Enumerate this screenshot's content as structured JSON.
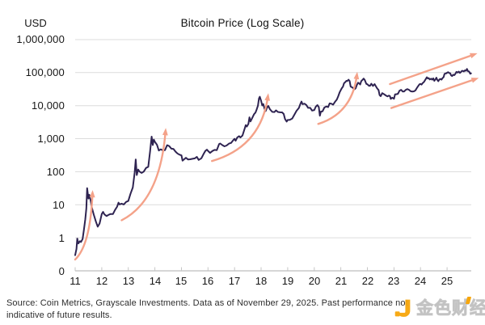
{
  "chart_data": {
    "type": "line",
    "title": "Bitcoin Price (Log Scale)",
    "y_axis_unit": "USD",
    "y_scale": "log10",
    "grid": true,
    "y_tick_labels": [
      "1,000,000",
      "100,000",
      "10,000",
      "1,000",
      "100",
      "10",
      "1",
      "0"
    ],
    "y_tick_values": [
      1000000,
      100000,
      10000,
      1000,
      100,
      10,
      1,
      0
    ],
    "x_tick_labels": [
      "11",
      "12",
      "13",
      "14",
      "15",
      "16",
      "17",
      "18",
      "19",
      "20",
      "21",
      "22",
      "23",
      "24",
      "25"
    ],
    "x_tick_years": [
      2011,
      2012,
      2013,
      2014,
      2015,
      2016,
      2017,
      2018,
      2019,
      2020,
      2021,
      2022,
      2023,
      2024,
      2025
    ],
    "x_range": [
      2011,
      2025.91
    ],
    "series": [
      {
        "name": "Bitcoin price (USD)",
        "points": [
          [
            2011.0,
            0.3
          ],
          [
            2011.05,
            0.45
          ],
          [
            2011.08,
            0.95
          ],
          [
            2011.12,
            0.7
          ],
          [
            2011.18,
            0.8
          ],
          [
            2011.22,
            0.75
          ],
          [
            2011.28,
            0.95
          ],
          [
            2011.33,
            1.8
          ],
          [
            2011.38,
            3.5
          ],
          [
            2011.42,
            8.0
          ],
          [
            2011.45,
            31
          ],
          [
            2011.5,
            15
          ],
          [
            2011.53,
            21
          ],
          [
            2011.58,
            13
          ],
          [
            2011.63,
            8
          ],
          [
            2011.7,
            4.8
          ],
          [
            2011.78,
            3.0
          ],
          [
            2011.85,
            2.2
          ],
          [
            2011.92,
            2.8
          ],
          [
            2012.0,
            5.4
          ],
          [
            2012.05,
            6.2
          ],
          [
            2012.1,
            4.9
          ],
          [
            2012.18,
            4.6
          ],
          [
            2012.25,
            4.9
          ],
          [
            2012.33,
            5.1
          ],
          [
            2012.42,
            5.4
          ],
          [
            2012.5,
            6.7
          ],
          [
            2012.58,
            9.0
          ],
          [
            2012.63,
            11.2
          ],
          [
            2012.67,
            9.8
          ],
          [
            2012.75,
            11.0
          ],
          [
            2012.83,
            10.4
          ],
          [
            2012.92,
            12.6
          ],
          [
            2013.0,
            13.4
          ],
          [
            2013.08,
            22
          ],
          [
            2013.17,
            34
          ],
          [
            2013.24,
            90
          ],
          [
            2013.28,
            230
          ],
          [
            2013.32,
            77
          ],
          [
            2013.37,
            118
          ],
          [
            2013.42,
            100
          ],
          [
            2013.5,
            90
          ],
          [
            2013.58,
            103
          ],
          [
            2013.67,
            128
          ],
          [
            2013.75,
            145
          ],
          [
            2013.82,
            420
          ],
          [
            2013.88,
            1120
          ],
          [
            2013.92,
            640
          ],
          [
            2013.96,
            940
          ],
          [
            2014.0,
            800
          ],
          [
            2014.08,
            640
          ],
          [
            2014.15,
            450
          ],
          [
            2014.22,
            480
          ],
          [
            2014.3,
            440
          ],
          [
            2014.38,
            460
          ],
          [
            2014.46,
            640
          ],
          [
            2014.54,
            590
          ],
          [
            2014.62,
            500
          ],
          [
            2014.7,
            475
          ],
          [
            2014.78,
            390
          ],
          [
            2014.85,
            360
          ],
          [
            2014.92,
            330
          ],
          [
            2015.0,
            310
          ],
          [
            2015.04,
            212
          ],
          [
            2015.1,
            235
          ],
          [
            2015.17,
            255
          ],
          [
            2015.25,
            240
          ],
          [
            2015.33,
            232
          ],
          [
            2015.42,
            238
          ],
          [
            2015.5,
            262
          ],
          [
            2015.58,
            284
          ],
          [
            2015.65,
            230
          ],
          [
            2015.75,
            265
          ],
          [
            2015.83,
            330
          ],
          [
            2015.9,
            425
          ],
          [
            2015.96,
            460
          ],
          [
            2016.0,
            432
          ],
          [
            2016.08,
            378
          ],
          [
            2016.17,
            415
          ],
          [
            2016.25,
            445
          ],
          [
            2016.33,
            455
          ],
          [
            2016.42,
            660
          ],
          [
            2016.46,
            700
          ],
          [
            2016.54,
            655
          ],
          [
            2016.62,
            600
          ],
          [
            2016.7,
            615
          ],
          [
            2016.79,
            700
          ],
          [
            2016.87,
            745
          ],
          [
            2016.96,
            900
          ],
          [
            2017.0,
            970
          ],
          [
            2017.04,
            890
          ],
          [
            2017.1,
            1060
          ],
          [
            2017.17,
            1200
          ],
          [
            2017.22,
            1050
          ],
          [
            2017.3,
            1290
          ],
          [
            2017.38,
            2050
          ],
          [
            2017.42,
            2550
          ],
          [
            2017.46,
            2250
          ],
          [
            2017.52,
            2900
          ],
          [
            2017.56,
            4350
          ],
          [
            2017.6,
            3250
          ],
          [
            2017.67,
            4300
          ],
          [
            2017.73,
            5600
          ],
          [
            2017.79,
            6100
          ],
          [
            2017.83,
            7300
          ],
          [
            2017.88,
            9900
          ],
          [
            2017.92,
            16000
          ],
          [
            2017.95,
            19400
          ],
          [
            2018.0,
            13800
          ],
          [
            2018.04,
            10200
          ],
          [
            2018.08,
            11300
          ],
          [
            2018.13,
            8300
          ],
          [
            2018.17,
            7000
          ],
          [
            2018.22,
            9100
          ],
          [
            2018.27,
            9600
          ],
          [
            2018.33,
            7600
          ],
          [
            2018.42,
            6450
          ],
          [
            2018.5,
            6350
          ],
          [
            2018.56,
            7400
          ],
          [
            2018.63,
            6450
          ],
          [
            2018.71,
            6550
          ],
          [
            2018.79,
            6400
          ],
          [
            2018.85,
            5600
          ],
          [
            2018.9,
            4100
          ],
          [
            2018.96,
            3250
          ],
          [
            2019.0,
            3720
          ],
          [
            2019.08,
            3850
          ],
          [
            2019.17,
            4050
          ],
          [
            2019.25,
            5200
          ],
          [
            2019.33,
            7100
          ],
          [
            2019.42,
            8800
          ],
          [
            2019.48,
            11800
          ],
          [
            2019.52,
            12900
          ],
          [
            2019.56,
            10800
          ],
          [
            2019.63,
            11300
          ],
          [
            2019.7,
            10100
          ],
          [
            2019.77,
            8300
          ],
          [
            2019.85,
            8700
          ],
          [
            2019.92,
            7300
          ],
          [
            2020.0,
            7200
          ],
          [
            2020.06,
            9400
          ],
          [
            2020.12,
            10200
          ],
          [
            2020.17,
            8800
          ],
          [
            2020.21,
            5000
          ],
          [
            2020.25,
            6700
          ],
          [
            2020.31,
            7000
          ],
          [
            2020.38,
            9100
          ],
          [
            2020.46,
            9300
          ],
          [
            2020.52,
            9150
          ],
          [
            2020.58,
            11300
          ],
          [
            2020.65,
            11800
          ],
          [
            2020.71,
            10500
          ],
          [
            2020.79,
            13100
          ],
          [
            2020.85,
            15600
          ],
          [
            2020.9,
            18500
          ],
          [
            2020.96,
            26500
          ],
          [
            2021.0,
            29300
          ],
          [
            2021.04,
            33500
          ],
          [
            2021.08,
            38000
          ],
          [
            2021.12,
            47500
          ],
          [
            2021.17,
            52000
          ],
          [
            2021.21,
            58500
          ],
          [
            2021.24,
            55000
          ],
          [
            2021.29,
            63500
          ],
          [
            2021.33,
            54000
          ],
          [
            2021.37,
            38000
          ],
          [
            2021.42,
            36500
          ],
          [
            2021.46,
            33000
          ],
          [
            2021.52,
            31800
          ],
          [
            2021.56,
            34500
          ],
          [
            2021.6,
            42000
          ],
          [
            2021.65,
            47500
          ],
          [
            2021.69,
            48800
          ],
          [
            2021.73,
            43500
          ],
          [
            2021.77,
            55000
          ],
          [
            2021.81,
            61500
          ],
          [
            2021.86,
            67500
          ],
          [
            2021.9,
            58000
          ],
          [
            2021.96,
            47500
          ],
          [
            2022.0,
            43500
          ],
          [
            2022.06,
            38500
          ],
          [
            2022.1,
            39000
          ],
          [
            2022.15,
            44200
          ],
          [
            2022.21,
            40500
          ],
          [
            2022.27,
            46000
          ],
          [
            2022.31,
            40000
          ],
          [
            2022.37,
            31500
          ],
          [
            2022.42,
            29500
          ],
          [
            2022.46,
            21500
          ],
          [
            2022.5,
            19200
          ],
          [
            2022.56,
            23200
          ],
          [
            2022.63,
            21500
          ],
          [
            2022.69,
            19800
          ],
          [
            2022.75,
            19300
          ],
          [
            2022.81,
            20300
          ],
          [
            2022.85,
            19100
          ],
          [
            2022.88,
            16300
          ],
          [
            2022.94,
            16900
          ],
          [
            2023.0,
            16600
          ],
          [
            2023.04,
            21100
          ],
          [
            2023.1,
            23200
          ],
          [
            2023.15,
            22100
          ],
          [
            2023.21,
            27800
          ],
          [
            2023.27,
            29000
          ],
          [
            2023.33,
            27200
          ],
          [
            2023.38,
            26800
          ],
          [
            2023.44,
            30200
          ],
          [
            2023.5,
            30400
          ],
          [
            2023.56,
            29200
          ],
          [
            2023.63,
            26100
          ],
          [
            2023.69,
            25900
          ],
          [
            2023.75,
            27000
          ],
          [
            2023.81,
            27800
          ],
          [
            2023.85,
            34500
          ],
          [
            2023.9,
            37200
          ],
          [
            2023.96,
            42800
          ],
          [
            2024.0,
            44200
          ],
          [
            2024.04,
            42800
          ],
          [
            2024.08,
            48000
          ],
          [
            2024.13,
            52000
          ],
          [
            2024.17,
            61500
          ],
          [
            2024.21,
            67500
          ],
          [
            2024.24,
            73000
          ],
          [
            2024.27,
            64500
          ],
          [
            2024.31,
            67000
          ],
          [
            2024.35,
            63800
          ],
          [
            2024.4,
            67000
          ],
          [
            2024.44,
            61000
          ],
          [
            2024.48,
            64800
          ],
          [
            2024.52,
            57500
          ],
          [
            2024.56,
            63500
          ],
          [
            2024.6,
            67500
          ],
          [
            2024.63,
            58500
          ],
          [
            2024.67,
            54300
          ],
          [
            2024.71,
            60500
          ],
          [
            2024.75,
            63200
          ],
          [
            2024.79,
            62000
          ],
          [
            2024.83,
            68500
          ],
          [
            2024.87,
            75500
          ],
          [
            2024.9,
            90500
          ],
          [
            2024.94,
            98000
          ],
          [
            2024.98,
            94500
          ],
          [
            2025.0,
            96500
          ],
          [
            2025.04,
            104500
          ],
          [
            2025.08,
            97500
          ],
          [
            2025.12,
            96000
          ],
          [
            2025.15,
            84500
          ],
          [
            2025.19,
            82000
          ],
          [
            2025.23,
            87500
          ],
          [
            2025.27,
            85000
          ],
          [
            2025.31,
            94500
          ],
          [
            2025.35,
            103500
          ],
          [
            2025.4,
            104000
          ],
          [
            2025.44,
            107500
          ],
          [
            2025.48,
            101500
          ],
          [
            2025.52,
            108500
          ],
          [
            2025.56,
            118000
          ],
          [
            2025.6,
            115500
          ],
          [
            2025.63,
            108500
          ],
          [
            2025.67,
            112500
          ],
          [
            2025.71,
            115500
          ],
          [
            2025.75,
            124500
          ],
          [
            2025.79,
            110000
          ],
          [
            2025.83,
            103500
          ],
          [
            2025.87,
            96500
          ],
          [
            2025.9,
            91000
          ]
        ]
      }
    ],
    "annotations": {
      "arrows": [
        {
          "name": "rally-2011-arrow",
          "style": "swoosh",
          "from": [
            2011.0,
            0.22
          ],
          "to": [
            2011.65,
            21
          ]
        },
        {
          "name": "rally-2013-arrow",
          "style": "swoosh",
          "from": [
            2012.75,
            3.4
          ],
          "to": [
            2014.4,
            1600
          ]
        },
        {
          "name": "rally-2017-arrow",
          "style": "swoosh",
          "from": [
            2016.15,
            210
          ],
          "to": [
            2018.25,
            18000
          ]
        },
        {
          "name": "rally-2021-arrow",
          "style": "swoosh",
          "from": [
            2020.15,
            2800
          ],
          "to": [
            2021.6,
            80000
          ]
        },
        {
          "name": "channel-upper-arrow",
          "style": "straight",
          "from": [
            2022.85,
            45000
          ],
          "to": [
            2026.0,
            350000
          ]
        },
        {
          "name": "channel-lower-arrow",
          "style": "straight",
          "from": [
            2022.9,
            8500
          ],
          "to": [
            2026.05,
            63000
          ]
        }
      ]
    },
    "colors": {
      "line": "#2e2351",
      "arrow": "#f4a289",
      "grid": "#dcdcdc",
      "axis": "#bdbdbd",
      "tick": "#c6c6c6",
      "text": "#161616",
      "watermark_orange": "#f7a60b"
    }
  },
  "source": {
    "lines": [
      "Source: Coin Metrics, Grayscale Investments. Data as of November 29, 2025. Past performance not",
      "indicative of future results."
    ]
  },
  "watermark": {
    "text": "金色财经"
  }
}
